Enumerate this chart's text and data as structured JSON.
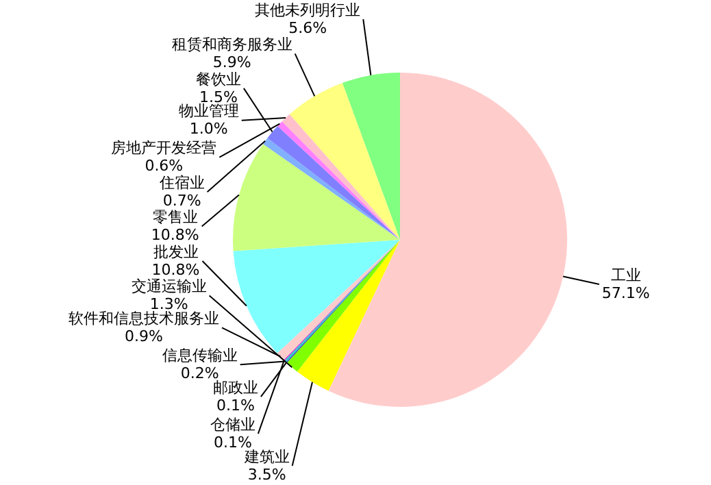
{
  "chart_data": {
    "type": "pie",
    "categories": [
      "工业",
      "建筑业",
      "交通运输业",
      "邮政业",
      "信息传输业",
      "仓储业",
      "软件和信息技术服务业",
      "批发业",
      "零售业",
      "住宿业",
      "餐饮业",
      "房地产开发经营",
      "物业管理",
      "租赁和商务服务业",
      "其他未列明行业"
    ],
    "values": [
      57.1,
      3.5,
      1.3,
      0.1,
      0.2,
      0.1,
      0.9,
      10.8,
      10.8,
      0.7,
      1.5,
      0.6,
      1.0,
      5.9,
      5.6
    ],
    "colors": [
      "#ffcccc",
      "#ffff00",
      "#80ff00",
      "#3333cc",
      "#33cccc",
      "#cc33cc",
      "#ffcccc",
      "#80ffff",
      "#ccff80",
      "#80b0ff",
      "#8080ff",
      "#ff80ff",
      "#ffc0cc",
      "#ffff80",
      "#80ff80"
    ],
    "value_labels": [
      "57.1%",
      "3.5%",
      "1.3%",
      "0.1%",
      "0.2%",
      "0.1%",
      "0.9%",
      "10.8%",
      "10.8%",
      "0.7%",
      "1.5%",
      "0.6%",
      "1.0%",
      "5.9%",
      "5.6%"
    ],
    "legend": false
  }
}
